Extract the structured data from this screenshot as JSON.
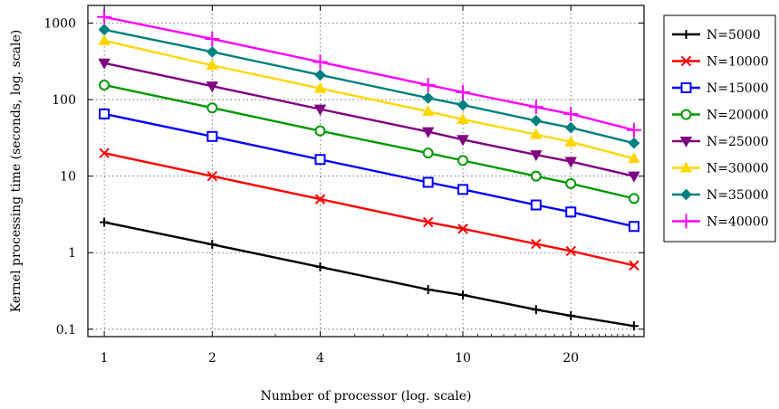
{
  "chart_data": {
    "type": "line",
    "xlabel": "Number of processor (log. scale)",
    "ylabel": "Kernel processing time (seconds, log. scale)",
    "xscale": "log",
    "yscale": "log",
    "xlim": [
      0.9,
      32
    ],
    "ylim": [
      0.08,
      1700
    ],
    "xticks": [
      1,
      2,
      4,
      10,
      20
    ],
    "xtick_labels": [
      "1",
      "2",
      "4",
      "10",
      "20"
    ],
    "yticks": [
      0.1,
      1,
      10,
      100,
      1000
    ],
    "ytick_labels": [
      "0.1",
      "1",
      "10",
      "100",
      "1000"
    ],
    "grid": true,
    "legend_position": "right",
    "x": [
      1,
      2,
      4,
      8,
      10,
      16,
      20,
      30
    ],
    "series": [
      {
        "name": "N=5000",
        "color": "#000000",
        "marker": "plus",
        "values": [
          2.5,
          1.28,
          0.65,
          0.33,
          0.28,
          0.18,
          0.15,
          0.11
        ]
      },
      {
        "name": "N=10000",
        "color": "#ff0000",
        "marker": "x",
        "values": [
          20,
          10,
          5,
          2.5,
          2.05,
          1.3,
          1.05,
          0.68
        ]
      },
      {
        "name": "N=15000",
        "color": "#0000ff",
        "marker": "square",
        "values": [
          65,
          33,
          16.5,
          8.3,
          6.7,
          4.2,
          3.4,
          2.2
        ]
      },
      {
        "name": "N=20000",
        "color": "#009900",
        "marker": "circle",
        "values": [
          155,
          78,
          39,
          20,
          16,
          10,
          8,
          5.1
        ]
      },
      {
        "name": "N=25000",
        "color": "#800080",
        "marker": "triangle-down",
        "values": [
          300,
          150,
          75,
          38,
          30,
          19,
          15.5,
          10
        ]
      },
      {
        "name": "N=30000",
        "color": "#ffd700",
        "marker": "triangle-up",
        "values": [
          590,
          280,
          140,
          70,
          55,
          35,
          28,
          17
        ]
      },
      {
        "name": "N=35000",
        "color": "#008080",
        "marker": "diamond",
        "values": [
          820,
          420,
          210,
          105,
          85,
          53,
          43,
          27
        ]
      },
      {
        "name": "N=40000",
        "color": "#ff00ff",
        "marker": "plus",
        "values": [
          1200,
          620,
          310,
          155,
          125,
          80,
          65,
          40
        ]
      }
    ]
  }
}
